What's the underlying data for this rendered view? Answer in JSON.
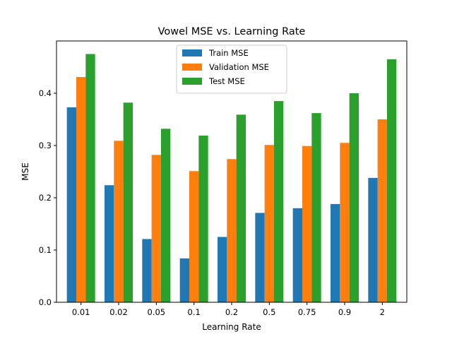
{
  "chart_data": {
    "type": "bar",
    "title": "Vowel MSE vs. Learning Rate",
    "xlabel": "Learning Rate",
    "ylabel": "MSE",
    "categories": [
      "0.01",
      "0.02",
      "0.05",
      "0.1",
      "0.2",
      "0.5",
      "0.75",
      "0.9",
      "2"
    ],
    "ylim": [
      0,
      0.5
    ],
    "yticks": [
      0.0,
      0.1,
      0.2,
      0.3,
      0.4
    ],
    "ytick_labels": [
      "0.0",
      "0.1",
      "0.2",
      "0.3",
      "0.4"
    ],
    "grid": false,
    "legend_position": "top-center",
    "series": [
      {
        "name": "Train MSE",
        "color": "#1f77b4",
        "values": [
          0.373,
          0.224,
          0.121,
          0.084,
          0.125,
          0.171,
          0.18,
          0.188,
          0.238
        ]
      },
      {
        "name": "Validation MSE",
        "color": "#ff7f0e",
        "values": [
          0.431,
          0.309,
          0.282,
          0.251,
          0.274,
          0.301,
          0.299,
          0.305,
          0.35
        ]
      },
      {
        "name": "Test MSE",
        "color": "#2ca02c",
        "values": [
          0.475,
          0.382,
          0.332,
          0.319,
          0.359,
          0.385,
          0.362,
          0.4,
          0.465
        ]
      }
    ]
  }
}
